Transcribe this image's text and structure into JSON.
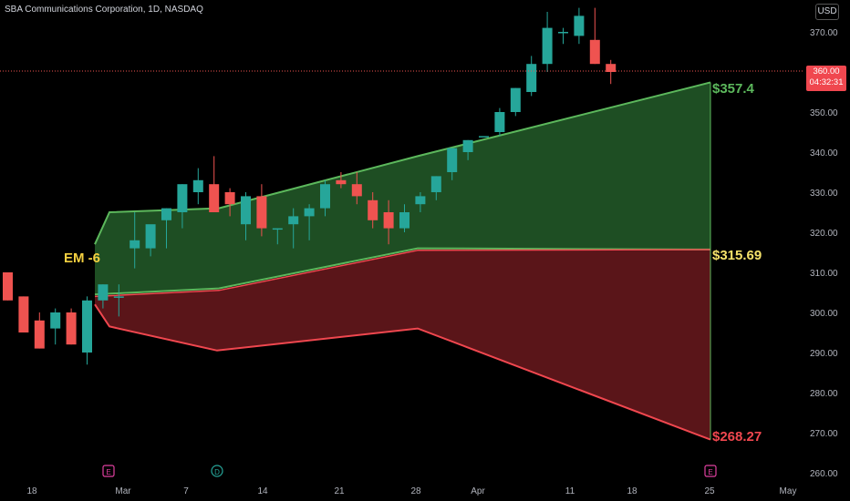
{
  "header": {
    "title": "SBA Communications Corporation, 1D, NASDAQ",
    "currency": "USD"
  },
  "colors": {
    "up": "#26a69a",
    "down": "#ef5350",
    "band_green": "#5cb85c",
    "band_red": "#f0474f",
    "fill_green": "#1e4e23",
    "fill_red": "#5a1519",
    "mid_label": "#f5e26a"
  },
  "price_marker": {
    "price": "360.00",
    "countdown": "04:32:31"
  },
  "levels": {
    "upper": "$357.4",
    "mid": "$315.69",
    "lower": "$268.27"
  },
  "em_label": "EM -6",
  "events": [
    "E",
    "D",
    "E"
  ],
  "chart_data": {
    "type": "candlestick",
    "y_ticks": [
      "370.00",
      "360.00",
      "350.00",
      "340.00",
      "330.00",
      "320.00",
      "310.00",
      "300.00",
      "290.00",
      "280.00",
      "270.00",
      "260.00"
    ],
    "ylim": [
      258,
      377
    ],
    "x_ticks": [
      "18",
      "Mar",
      "7",
      "14",
      "21",
      "28",
      "Apr",
      "11",
      "18",
      "25",
      "May"
    ],
    "candles": [
      {
        "o": 310,
        "h": 310,
        "l": 303,
        "c": 303
      },
      {
        "o": 304,
        "h": 304,
        "l": 295,
        "c": 295
      },
      {
        "o": 298,
        "h": 300,
        "l": 291,
        "c": 291
      },
      {
        "o": 296,
        "h": 301,
        "l": 292,
        "c": 300
      },
      {
        "o": 300,
        "h": 301,
        "l": 292,
        "c": 292
      },
      {
        "o": 290,
        "h": 304,
        "l": 287,
        "c": 303
      },
      {
        "o": 303,
        "h": 307,
        "l": 301,
        "c": 307
      },
      {
        "o": 304,
        "h": 307,
        "l": 299,
        "c": 304
      },
      {
        "o": 316,
        "h": 325,
        "l": 311,
        "c": 318
      },
      {
        "o": 316,
        "h": 321,
        "l": 314,
        "c": 322
      },
      {
        "o": 323,
        "h": 326,
        "l": 316,
        "c": 326
      },
      {
        "o": 325,
        "h": 332,
        "l": 321,
        "c": 332
      },
      {
        "o": 330,
        "h": 336,
        "l": 327,
        "c": 333
      },
      {
        "o": 332,
        "h": 339,
        "l": 325,
        "c": 325
      },
      {
        "o": 330,
        "h": 331,
        "l": 324,
        "c": 327
      },
      {
        "o": 322,
        "h": 330,
        "l": 318,
        "c": 329
      },
      {
        "o": 329,
        "h": 332,
        "l": 319,
        "c": 321
      },
      {
        "o": 321,
        "h": 321,
        "l": 317,
        "c": 321
      },
      {
        "o": 322,
        "h": 326,
        "l": 316,
        "c": 324
      },
      {
        "o": 324,
        "h": 327,
        "l": 318,
        "c": 326
      },
      {
        "o": 326,
        "h": 333,
        "l": 324,
        "c": 332
      },
      {
        "o": 333,
        "h": 335,
        "l": 331,
        "c": 332
      },
      {
        "o": 332,
        "h": 335,
        "l": 327,
        "c": 329
      },
      {
        "o": 328,
        "h": 330,
        "l": 321,
        "c": 323
      },
      {
        "o": 325,
        "h": 328,
        "l": 317,
        "c": 321
      },
      {
        "o": 321,
        "h": 327,
        "l": 320,
        "c": 325
      },
      {
        "o": 327,
        "h": 330,
        "l": 325,
        "c": 329
      },
      {
        "o": 330,
        "h": 334,
        "l": 328,
        "c": 334
      },
      {
        "o": 335,
        "h": 341,
        "l": 333,
        "c": 341
      },
      {
        "o": 340,
        "h": 343,
        "l": 338,
        "c": 343
      },
      {
        "o": 344,
        "h": 344,
        "l": 344,
        "c": 344
      },
      {
        "o": 345,
        "h": 351,
        "l": 344,
        "c": 350
      },
      {
        "o": 350,
        "h": 356,
        "l": 349,
        "c": 356
      },
      {
        "o": 355,
        "h": 364,
        "l": 354,
        "c": 362
      },
      {
        "o": 362,
        "h": 375,
        "l": 360,
        "c": 371
      },
      {
        "o": 370,
        "h": 371,
        "l": 367,
        "c": 370
      },
      {
        "o": 369,
        "h": 376,
        "l": 367,
        "c": 374
      },
      {
        "o": 368,
        "h": 376,
        "l": 362,
        "c": 362
      },
      {
        "o": 362,
        "h": 363,
        "l": 357,
        "c": 360
      }
    ],
    "expected_move": {
      "upper": [
        317,
        325,
        326,
        339,
        357.4
      ],
      "mid_upper": [
        304.5,
        306,
        316,
        315.7
      ],
      "mid_lower": [
        304,
        305.5,
        315.5,
        315.69
      ],
      "lower": [
        302,
        296.5,
        290.5,
        296,
        268.27
      ]
    }
  }
}
